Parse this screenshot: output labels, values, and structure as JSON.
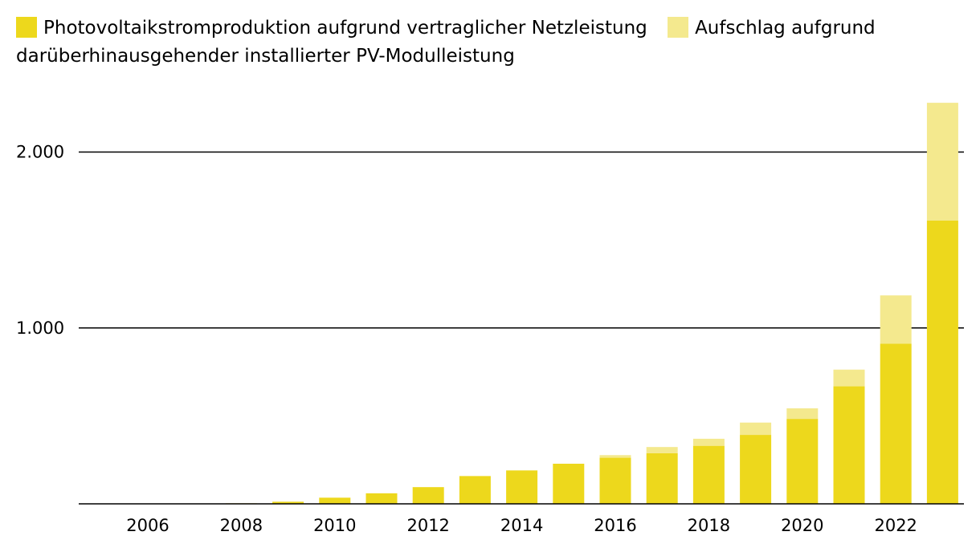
{
  "chart_data": {
    "type": "bar",
    "stacked": true,
    "title": "",
    "xlabel": "",
    "ylabel": "",
    "legend_position": "top",
    "categories": [
      "2006",
      "2007",
      "2008",
      "2009",
      "2010",
      "2011",
      "2012",
      "2013",
      "2014",
      "2015",
      "2016",
      "2017",
      "2018",
      "2019",
      "2020",
      "2021",
      "2022",
      "2023"
    ],
    "x_tick_labels": [
      "2006",
      "2008",
      "2010",
      "2012",
      "2014",
      "2016",
      "2018",
      "2020",
      "2022"
    ],
    "y_ticks": [
      1000,
      2000
    ],
    "y_tick_labels": [
      "1.000",
      "2.000"
    ],
    "ylim": [
      0,
      2300
    ],
    "series": [
      {
        "name": "Photovoltaikstromproduktion aufgrund vertraglicher Netzleistung",
        "color": "#EDD81C",
        "values": [
          1,
          2,
          3,
          12,
          35,
          60,
          95,
          158,
          190,
          228,
          262,
          288,
          330,
          392,
          483,
          668,
          910,
          1610
        ]
      },
      {
        "name": "Aufschlag aufgrund darüberhinausgehender installierter PV-Modulleistung",
        "color": "#F4E98E",
        "values": [
          0,
          0,
          0,
          0,
          0,
          0,
          0,
          0,
          0,
          0,
          15,
          35,
          40,
          70,
          60,
          95,
          275,
          670
        ]
      }
    ]
  }
}
